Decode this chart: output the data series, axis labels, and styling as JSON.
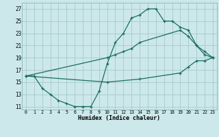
{
  "xlabel": "Humidex (Indice chaleur)",
  "bg_color": "#cce8ea",
  "grid_color": "#aacdd0",
  "line_color": "#1a6b62",
  "xlim": [
    -0.5,
    23.5
  ],
  "ylim": [
    10.5,
    28.0
  ],
  "xticks": [
    0,
    1,
    2,
    3,
    4,
    5,
    6,
    7,
    8,
    9,
    10,
    11,
    12,
    13,
    14,
    15,
    16,
    17,
    18,
    19,
    20,
    21,
    22,
    23
  ],
  "yticks": [
    11,
    13,
    15,
    17,
    19,
    21,
    23,
    25,
    27
  ],
  "line1_x": [
    0,
    1,
    2,
    3,
    4,
    5,
    6,
    7,
    8,
    9,
    10,
    11,
    12,
    13,
    14,
    15,
    16,
    17,
    18,
    19,
    20,
    21,
    22,
    23
  ],
  "line1_y": [
    16,
    16,
    14,
    13,
    12,
    11.5,
    11,
    11,
    11,
    13.5,
    18,
    21.5,
    23,
    25.5,
    26,
    27,
    27,
    25,
    25,
    24,
    23.5,
    21,
    19.5,
    19
  ],
  "line2_x": [
    0,
    10,
    11,
    12,
    13,
    14,
    19,
    20,
    21,
    22,
    23
  ],
  "line2_y": [
    16,
    19,
    19.5,
    20,
    20.5,
    21.5,
    23.5,
    22.5,
    21,
    20,
    19
  ],
  "line3_x": [
    0,
    10,
    14,
    19,
    20,
    21,
    22,
    23
  ],
  "line3_y": [
    16,
    15,
    15.5,
    16.5,
    17.5,
    18.5,
    18.5,
    19
  ]
}
